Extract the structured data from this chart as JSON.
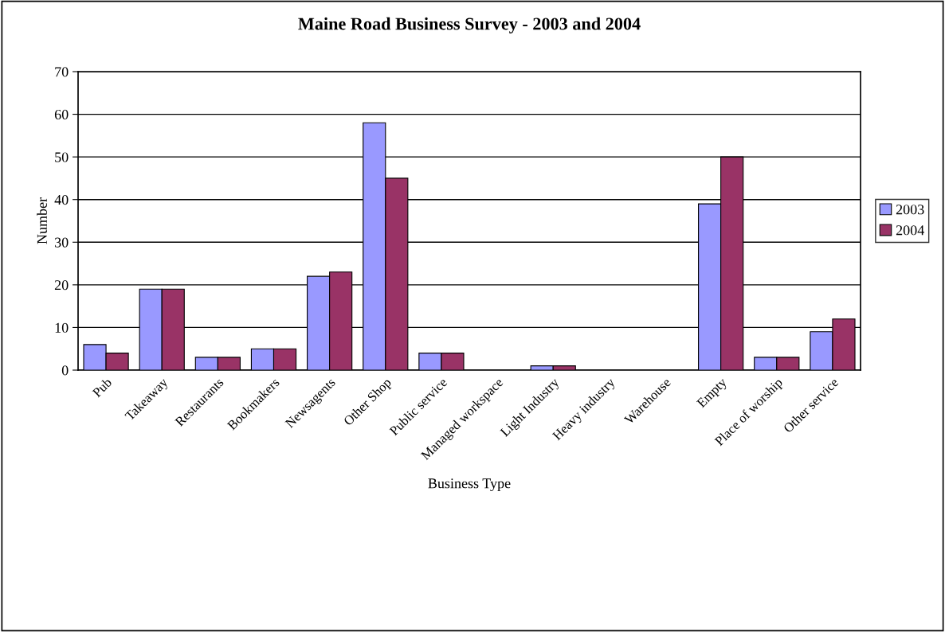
{
  "chart_data": {
    "type": "bar",
    "title": "Maine Road Business Survey - 2003 and 2004",
    "xlabel": "Business Type",
    "ylabel": "Number",
    "categories": [
      "Pub",
      "Takeaway",
      "Restaurants",
      "Bookmakers",
      "Newsagents",
      "Other Shop",
      "Public service",
      "Managed workspace",
      "Light Industry",
      "Heavy industry",
      "Warehouse",
      "Empty",
      "Place of worship",
      "Other service"
    ],
    "series": [
      {
        "name": "2003",
        "color": "#9999ff",
        "values": [
          6,
          19,
          3,
          5,
          22,
          58,
          4,
          0,
          1,
          0,
          0,
          39,
          3,
          9
        ]
      },
      {
        "name": "2004",
        "color": "#993366",
        "values": [
          4,
          19,
          3,
          5,
          23,
          45,
          4,
          0,
          1,
          0,
          0,
          50,
          3,
          12
        ]
      }
    ],
    "ylim": [
      0,
      70
    ],
    "yticks": [
      0,
      10,
      20,
      30,
      40,
      50,
      60,
      70
    ],
    "grid": "y",
    "legend": "right"
  }
}
